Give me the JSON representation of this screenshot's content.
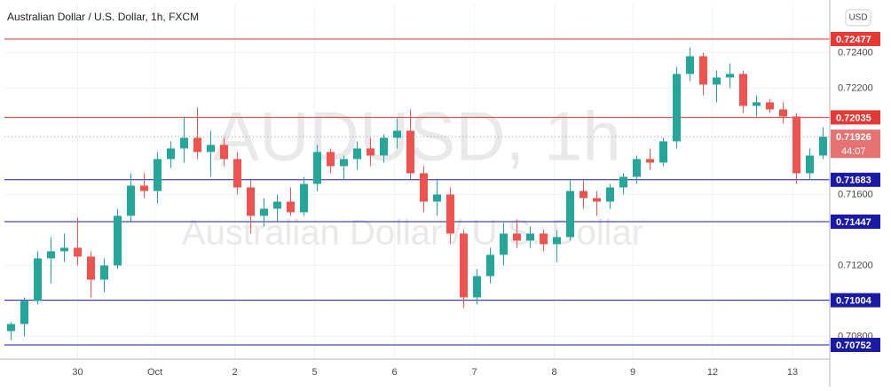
{
  "chart_data": {
    "type": "candlestick",
    "title": "Australian Dollar / U.S. Dollar, 1h, FXCM",
    "watermark_symbol": "AUDUSD, 1h",
    "watermark_name": "Australian Dollar / U.S. Dollar",
    "currency": "USD",
    "up_color": "#26a69a",
    "down_color": "#ef5350",
    "x": [
      0.5,
      1.5,
      2.5,
      3.5,
      4.5,
      5.5,
      6.5,
      7.5,
      8.5,
      9.5,
      10.5,
      11.5,
      12.5,
      13.5,
      14.5,
      15.5,
      16.5,
      17.5,
      18.5,
      19.5,
      20.5,
      21.5,
      22.5,
      23.5,
      24.5,
      25.5,
      26.5,
      27.5,
      28.5,
      29.5,
      30.5,
      31.5,
      32.5,
      33.5,
      34.5,
      35.5,
      36.5,
      37.5,
      38.5,
      39.5,
      40.5,
      41.5,
      42.5,
      43.5,
      44.5,
      45.5,
      46.5,
      47.5,
      48.5,
      49.5,
      50.5,
      51.5,
      52.5,
      53.5,
      54.5,
      55.5,
      56.5,
      57.5,
      58.5,
      59.5,
      60.5,
      61.5
    ],
    "open": [
      0.7083,
      0.7087,
      0.71,
      0.7124,
      0.7128,
      0.713,
      0.7125,
      0.7112,
      0.712,
      0.7148,
      0.7165,
      0.7162,
      0.718,
      0.7186,
      0.7192,
      0.7184,
      0.7188,
      0.718,
      0.7164,
      0.7148,
      0.7152,
      0.7156,
      0.715,
      0.7166,
      0.7184,
      0.7176,
      0.718,
      0.7186,
      0.7182,
      0.7192,
      0.7196,
      0.7172,
      0.7156,
      0.716,
      0.7138,
      0.7102,
      0.7114,
      0.7126,
      0.7138,
      0.7134,
      0.7138,
      0.7132,
      0.7136,
      0.7162,
      0.7158,
      0.7156,
      0.7164,
      0.717,
      0.718,
      0.7178,
      0.719,
      0.7228,
      0.7238,
      0.7222,
      0.7226,
      0.7228,
      0.721,
      0.7212,
      0.7208,
      0.7204,
      0.7172,
      0.7182
    ],
    "high": [
      0.7088,
      0.7102,
      0.7128,
      0.7136,
      0.7138,
      0.7147,
      0.7128,
      0.7124,
      0.7152,
      0.7172,
      0.7172,
      0.7184,
      0.719,
      0.7204,
      0.7209,
      0.7196,
      0.7192,
      0.7184,
      0.7168,
      0.7158,
      0.716,
      0.7164,
      0.717,
      0.7188,
      0.7186,
      0.7182,
      0.719,
      0.7192,
      0.7194,
      0.7203,
      0.7208,
      0.7176,
      0.7168,
      0.7164,
      0.714,
      0.7118,
      0.713,
      0.7144,
      0.7146,
      0.7142,
      0.714,
      0.714,
      0.7168,
      0.7168,
      0.7162,
      0.7166,
      0.7172,
      0.7182,
      0.7186,
      0.7192,
      0.7232,
      0.7243,
      0.724,
      0.723,
      0.7234,
      0.723,
      0.7216,
      0.7214,
      0.7212,
      0.7206,
      0.7186,
      0.7198
    ],
    "low": [
      0.7078,
      0.708,
      0.7098,
      0.711,
      0.7122,
      0.712,
      0.7102,
      0.7105,
      0.7118,
      0.7145,
      0.7158,
      0.7155,
      0.7175,
      0.7178,
      0.718,
      0.717,
      0.7176,
      0.716,
      0.7138,
      0.7142,
      0.7145,
      0.7148,
      0.7148,
      0.7162,
      0.7172,
      0.7168,
      0.7174,
      0.7176,
      0.7178,
      0.7186,
      0.7168,
      0.715,
      0.7148,
      0.7132,
      0.7096,
      0.7098,
      0.711,
      0.712,
      0.713,
      0.713,
      0.7128,
      0.7122,
      0.7134,
      0.7152,
      0.7148,
      0.7152,
      0.716,
      0.7166,
      0.7174,
      0.7176,
      0.7186,
      0.7224,
      0.7216,
      0.7212,
      0.722,
      0.7206,
      0.7204,
      0.7206,
      0.72,
      0.7166,
      0.7168,
      0.718
    ],
    "close": [
      0.7087,
      0.71,
      0.7124,
      0.7128,
      0.713,
      0.7125,
      0.7112,
      0.712,
      0.7148,
      0.7165,
      0.7162,
      0.718,
      0.7186,
      0.7192,
      0.7184,
      0.7188,
      0.718,
      0.7164,
      0.7148,
      0.7152,
      0.7156,
      0.715,
      0.7166,
      0.7184,
      0.7176,
      0.718,
      0.7186,
      0.7182,
      0.7192,
      0.7196,
      0.7172,
      0.7156,
      0.716,
      0.7138,
      0.7102,
      0.7114,
      0.7126,
      0.7138,
      0.7134,
      0.7138,
      0.7132,
      0.7136,
      0.7162,
      0.7158,
      0.7156,
      0.7164,
      0.717,
      0.718,
      0.7178,
      0.719,
      0.7228,
      0.7238,
      0.7222,
      0.7226,
      0.7228,
      0.721,
      0.7212,
      0.7208,
      0.7204,
      0.7172,
      0.7182,
      0.71926
    ],
    "xlim": [
      0,
      62
    ],
    "xticks": [
      {
        "value": 5.5,
        "label": "30"
      },
      {
        "value": 11.3,
        "label": "Oct"
      },
      {
        "value": 17.3,
        "label": "2"
      },
      {
        "value": 23.3,
        "label": "5"
      },
      {
        "value": 29.3,
        "label": "6"
      },
      {
        "value": 35.3,
        "label": "7"
      },
      {
        "value": 41.3,
        "label": "8"
      },
      {
        "value": 47.2,
        "label": "9"
      },
      {
        "value": 53.2,
        "label": "12"
      },
      {
        "value": 59.2,
        "label": "13"
      }
    ],
    "ylim": [
      0.70672,
      0.72672
    ],
    "yticks": [
      {
        "value": 0.724,
        "label": "0.72400"
      },
      {
        "value": 0.722,
        "label": "0.72200"
      },
      {
        "value": 0.716,
        "label": "0.71600"
      },
      {
        "value": 0.712,
        "label": "0.71200"
      },
      {
        "value": 0.708,
        "label": "0.70800"
      }
    ],
    "grid": true,
    "levels": [
      {
        "value": 0.72477,
        "color": "#e53935"
      },
      {
        "value": 0.72035,
        "color": "#e53935"
      },
      {
        "value": 0.71683,
        "color": "#1a1aa6"
      },
      {
        "value": 0.71447,
        "color": "#1a1aa6"
      },
      {
        "value": 0.71004,
        "color": "#1a1aa6"
      },
      {
        "value": 0.70752,
        "color": "#1a1aa6"
      }
    ],
    "last_price": 0.71926,
    "countdown": "44:07"
  }
}
